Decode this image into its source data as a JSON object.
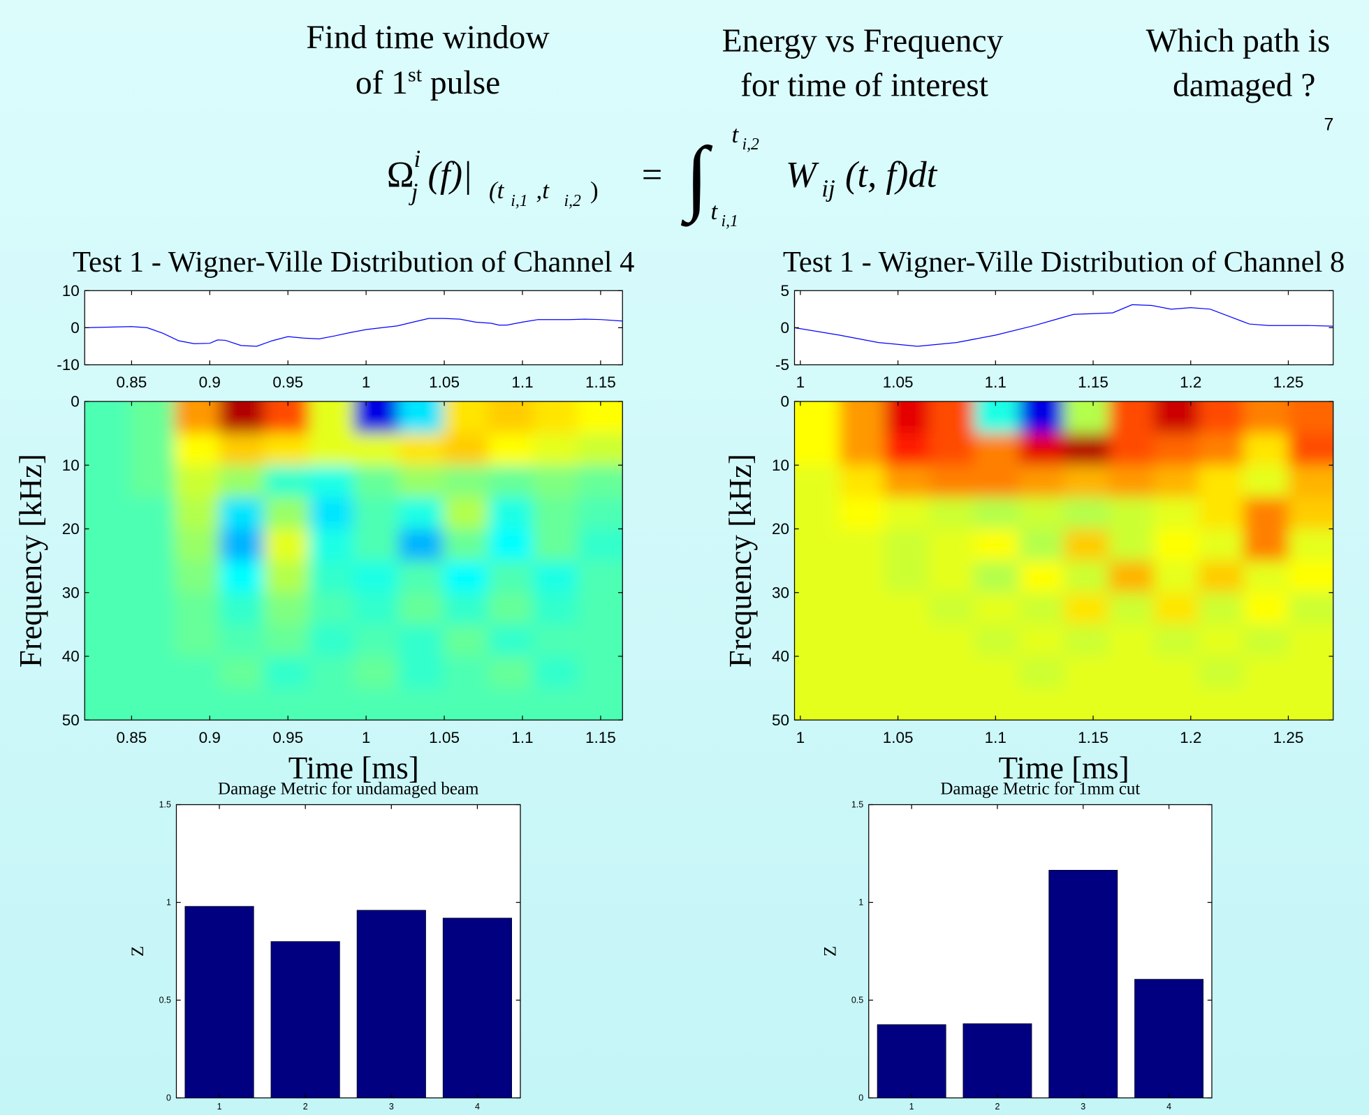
{
  "headings": [
    [
      [
        "Find time window"
      ],
      [
        "of 1",
        "st",
        " pulse"
      ]
    ],
    [
      [
        "Energy vs Frequency"
      ],
      [
        "for time of interest"
      ]
    ],
    [
      [
        "Which path is"
      ],
      [
        "damaged ?"
      ]
    ]
  ],
  "page_number": "7",
  "formula": [
    "Ω",
    "i",
    "j",
    "(f)|",
    "(t",
    "i,1",
    ",t",
    "i,2",
    ")",
    "=",
    "∫",
    "t",
    "i,2",
    "t",
    "i,1",
    "W",
    "ij",
    "(t, f)dt"
  ],
  "chart_data": [
    {
      "type": "line",
      "title": "Test 1 - Wigner-Ville Distribution of Channel 4",
      "x": [
        0.82,
        0.85,
        0.86,
        0.87,
        0.88,
        0.89,
        0.9,
        0.905,
        0.91,
        0.92,
        0.93,
        0.94,
        0.95,
        0.96,
        0.97,
        0.98,
        0.99,
        1.0,
        1.01,
        1.02,
        1.03,
        1.04,
        1.05,
        1.06,
        1.07,
        1.08,
        1.085,
        1.09,
        1.1,
        1.11,
        1.12,
        1.13,
        1.14,
        1.15,
        1.164
      ],
      "values": [
        0,
        0.3,
        0,
        -1.5,
        -3.5,
        -4.3,
        -4.2,
        -3.3,
        -3.4,
        -4.8,
        -5,
        -3.5,
        -2.4,
        -2.8,
        -3,
        -2.2,
        -1.3,
        -0.5,
        0,
        0.5,
        1.5,
        2.5,
        2.5,
        2.3,
        1.5,
        1.2,
        0.7,
        0.7,
        1.5,
        2.2,
        2.2,
        2.2,
        2.3,
        2.2,
        1.8
      ],
      "color": "#0000ff",
      "xlim": [
        0.82,
        1.164
      ],
      "ylim": [
        -10,
        10
      ],
      "xticks": [
        0.85,
        0.9,
        0.95,
        1,
        1.05,
        1.1,
        1.15
      ],
      "yticks": [
        -10,
        0,
        10
      ]
    },
    {
      "type": "heatmap",
      "xlabel": "Time [ms]",
      "ylabel": "Frequency [kHz]",
      "xlim": [
        0.82,
        1.164
      ],
      "ylim": [
        0,
        50
      ],
      "y_inverted": true,
      "xticks": [
        0.85,
        0.9,
        0.95,
        1,
        1.05,
        1.1,
        1.15
      ],
      "yticks": [
        0,
        10,
        20,
        30,
        40,
        50
      ],
      "colormap": "jet",
      "clim": [
        -1,
        1
      ],
      "values": [
        [
          -0.1,
          -0.05,
          0.45,
          0.9,
          0.6,
          0.2,
          -0.8,
          -0.3,
          0.3,
          0.35,
          0.3,
          0.25
        ],
        [
          -0.1,
          -0.05,
          0.25,
          0.35,
          0.3,
          0.2,
          0.2,
          0.3,
          0.35,
          0.25,
          0.2,
          0.15
        ],
        [
          -0.1,
          -0.05,
          0.15,
          0.05,
          -0.15,
          -0.2,
          -0.05,
          0.05,
          0,
          -0.05,
          0,
          -0.05
        ],
        [
          -0.1,
          -0.1,
          0.1,
          -0.3,
          0.05,
          -0.3,
          -0.1,
          -0.2,
          0.1,
          -0.2,
          -0.05,
          -0.1
        ],
        [
          -0.1,
          -0.1,
          0.05,
          -0.4,
          0.2,
          -0.2,
          -0.1,
          -0.4,
          -0.05,
          -0.25,
          -0.05,
          -0.15
        ],
        [
          -0.1,
          -0.1,
          0,
          -0.25,
          0.1,
          -0.15,
          -0.2,
          -0.1,
          -0.25,
          -0.1,
          -0.2,
          -0.1
        ],
        [
          -0.1,
          -0.1,
          -0.05,
          -0.15,
          0,
          -0.1,
          -0.15,
          -0.05,
          -0.15,
          -0.05,
          -0.15,
          -0.1
        ],
        [
          -0.1,
          -0.1,
          -0.05,
          -0.1,
          -0.05,
          -0.15,
          -0.1,
          -0.15,
          -0.05,
          -0.15,
          -0.1,
          -0.1
        ],
        [
          -0.1,
          -0.1,
          -0.1,
          -0.05,
          -0.15,
          -0.1,
          -0.05,
          -0.15,
          -0.1,
          -0.05,
          -0.15,
          -0.1
        ],
        [
          -0.1,
          -0.1,
          -0.1,
          -0.1,
          -0.1,
          -0.1,
          -0.1,
          -0.1,
          -0.1,
          -0.1,
          -0.1,
          -0.1
        ]
      ]
    },
    {
      "type": "line",
      "title": "Test 1 - Wigner-Ville Distribution of Channel 8",
      "x": [
        0.997,
        1.02,
        1.04,
        1.06,
        1.08,
        1.1,
        1.12,
        1.14,
        1.16,
        1.17,
        1.18,
        1.19,
        1.2,
        1.21,
        1.22,
        1.23,
        1.24,
        1.26,
        1.273
      ],
      "values": [
        0,
        -1,
        -2,
        -2.5,
        -2,
        -1,
        0.3,
        1.8,
        2,
        3.1,
        3,
        2.5,
        2.7,
        2.5,
        1.5,
        0.5,
        0.3,
        0.3,
        0.2
      ],
      "color": "#0000ff",
      "xlim": [
        0.997,
        1.273
      ],
      "ylim": [
        -5,
        5
      ],
      "xticks": [
        1,
        1.05,
        1.1,
        1.15,
        1.2,
        1.25
      ],
      "yticks": [
        -5,
        0,
        5
      ]
    },
    {
      "type": "heatmap",
      "xlabel": "Time [ms]",
      "ylabel": "Frequency [kHz]",
      "xlim": [
        0.997,
        1.273
      ],
      "ylim": [
        0,
        50
      ],
      "y_inverted": true,
      "xticks": [
        1,
        1.05,
        1.1,
        1.15,
        1.2,
        1.25
      ],
      "yticks": [
        0,
        10,
        20,
        30,
        40,
        50
      ],
      "colormap": "jet",
      "clim": [
        -1,
        1
      ],
      "values": [
        [
          0.25,
          0.45,
          0.8,
          0.6,
          -0.2,
          -0.8,
          0.1,
          0.6,
          0.85,
          0.6,
          0.5,
          0.55
        ],
        [
          0.25,
          0.45,
          0.7,
          0.6,
          0.5,
          0.8,
          0.9,
          0.6,
          0.55,
          0.5,
          0.3,
          0.6
        ],
        [
          0.2,
          0.3,
          0.45,
          0.5,
          0.5,
          0.45,
          0.4,
          0.45,
          0.4,
          0.3,
          0.2,
          0.4
        ],
        [
          0.2,
          0.25,
          0.2,
          0.15,
          0.1,
          0.15,
          0.1,
          0.15,
          0.2,
          0.3,
          0.5,
          0.35
        ],
        [
          0.2,
          0.2,
          0.15,
          0.2,
          0.25,
          0.1,
          0.35,
          0.15,
          0.25,
          0.2,
          0.5,
          0.2
        ],
        [
          0.2,
          0.2,
          0.15,
          0.2,
          0.1,
          0.25,
          0.15,
          0.4,
          0.2,
          0.35,
          0.2,
          0.25
        ],
        [
          0.2,
          0.2,
          0.2,
          0.15,
          0.2,
          0.15,
          0.3,
          0.15,
          0.3,
          0.15,
          0.25,
          0.15
        ],
        [
          0.2,
          0.2,
          0.2,
          0.2,
          0.15,
          0.2,
          0.15,
          0.2,
          0.15,
          0.2,
          0.15,
          0.2
        ],
        [
          0.2,
          0.2,
          0.2,
          0.2,
          0.2,
          0.15,
          0.2,
          0.2,
          0.2,
          0.15,
          0.2,
          0.2
        ],
        [
          0.2,
          0.2,
          0.2,
          0.2,
          0.2,
          0.2,
          0.2,
          0.2,
          0.2,
          0.2,
          0.2,
          0.2
        ]
      ]
    },
    {
      "type": "bar",
      "title": "Damage Metric for undamaged beam",
      "ylabel": "Z",
      "categories": [
        "1",
        "2",
        "3",
        "4"
      ],
      "values": [
        0.98,
        0.8,
        0.96,
        0.92
      ],
      "color": "#000080",
      "ylim": [
        0,
        1.5
      ],
      "yticks": [
        0,
        0.5,
        1,
        1.5
      ]
    },
    {
      "type": "bar",
      "title": "Damage Metric for 1mm cut",
      "ylabel": "Z",
      "categories": [
        "1",
        "2",
        "3",
        "4"
      ],
      "values": [
        0.375,
        0.38,
        1.165,
        0.607
      ],
      "color": "#000080",
      "ylim": [
        0,
        1.5
      ],
      "yticks": [
        0,
        0.5,
        1,
        1.5
      ]
    }
  ]
}
